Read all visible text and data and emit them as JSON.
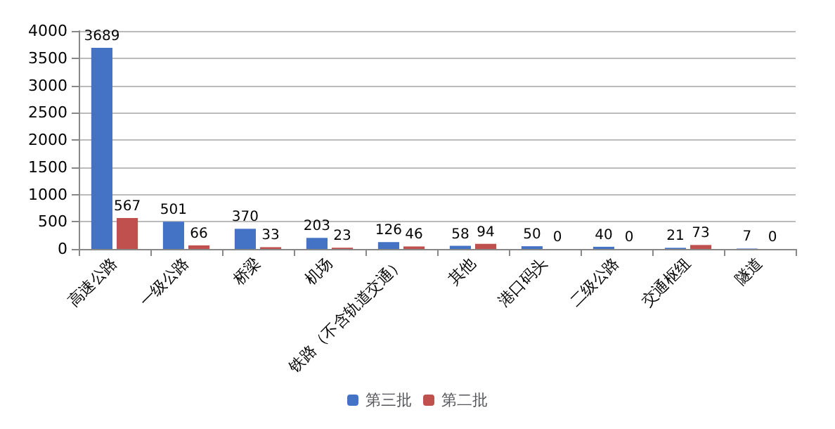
{
  "chart_data": {
    "type": "bar",
    "categories": [
      "高速公路",
      "一级公路",
      "桥梁",
      "机场",
      "铁路（不含轨道交通）",
      "其他",
      "港口码头",
      "二级公路",
      "交通枢纽",
      "隧道"
    ],
    "series": [
      {
        "name": "第三批",
        "color": "#4472c4",
        "values": [
          3689,
          501,
          370,
          203,
          126,
          58,
          50,
          40,
          21,
          7
        ]
      },
      {
        "name": "第二批",
        "color": "#c0504d",
        "values": [
          567,
          66,
          33,
          23,
          46,
          94,
          0,
          0,
          73,
          0
        ]
      }
    ],
    "ylim": [
      0,
      4000
    ],
    "yticks": [
      0,
      500,
      1000,
      1500,
      2000,
      2500,
      3000,
      3500,
      4000
    ],
    "grid": "y",
    "legend": "bottom",
    "data_labels": true
  }
}
